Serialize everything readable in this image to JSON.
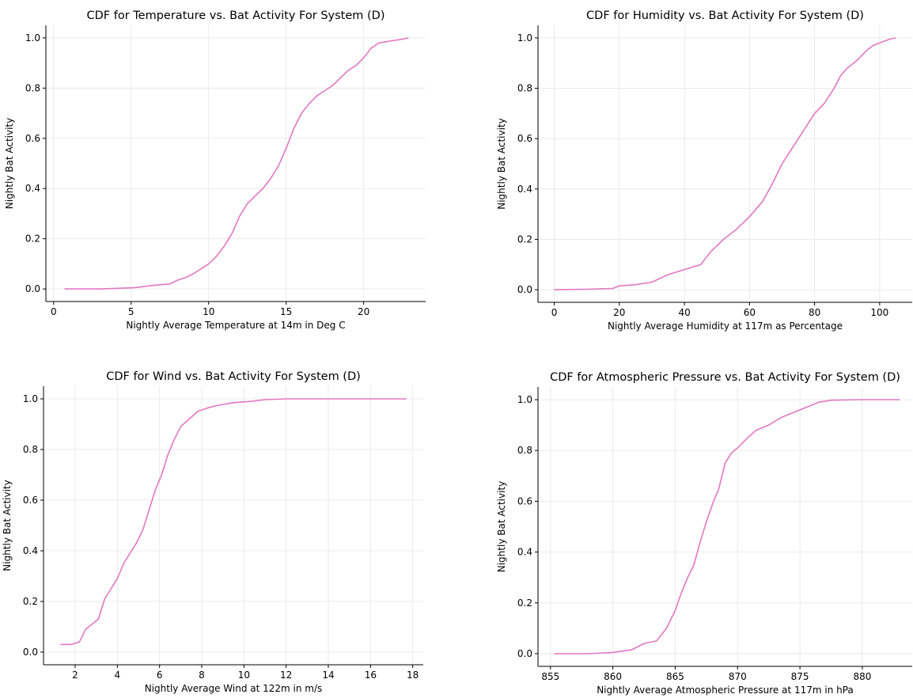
{
  "chart_data": [
    {
      "type": "line",
      "title": "CDF for Temperature vs. Bat Activity For System (D)",
      "xlabel": "Nightly Average Temperature at 14m in Deg C",
      "ylabel": "Nightly Bat Activity",
      "xlim": [
        -0.5,
        24.0
      ],
      "ylim": [
        -0.05,
        1.05
      ],
      "xticks": [
        0,
        5,
        10,
        15,
        20
      ],
      "yticks": [
        0.0,
        0.2,
        0.4,
        0.6,
        0.8,
        1.0
      ],
      "xticklabels": [
        "0",
        "5",
        "10",
        "15",
        "20"
      ],
      "yticklabels": [
        "0.0",
        "0.2",
        "0.4",
        "0.6",
        "0.8",
        "1.0"
      ],
      "grid": true,
      "color": "#e377c2",
      "x": [
        0.7,
        3.0,
        5.2,
        6.5,
        7.5,
        8.0,
        8.5,
        9.0,
        9.5,
        10.0,
        10.5,
        11.0,
        11.5,
        12.0,
        12.5,
        13.0,
        13.5,
        14.0,
        14.5,
        15.0,
        15.5,
        16.0,
        16.5,
        17.0,
        17.5,
        18.0,
        18.5,
        19.0,
        19.5,
        20.0,
        20.5,
        21.0,
        21.5,
        22.0,
        22.5,
        22.9
      ],
      "y": [
        0.0,
        0.0,
        0.005,
        0.015,
        0.02,
        0.035,
        0.045,
        0.06,
        0.08,
        0.1,
        0.13,
        0.17,
        0.22,
        0.29,
        0.34,
        0.37,
        0.4,
        0.44,
        0.49,
        0.56,
        0.64,
        0.7,
        0.74,
        0.77,
        0.79,
        0.81,
        0.84,
        0.87,
        0.89,
        0.92,
        0.96,
        0.98,
        0.985,
        0.99,
        0.995,
        1.0
      ]
    },
    {
      "type": "line",
      "title": "CDF for Humidity vs. Bat Activity For System (D)",
      "xlabel": "Nightly Average Humidity at 117m as Percentage",
      "ylabel": "Nightly Bat Activity",
      "xlim": [
        -5.0,
        110.0
      ],
      "ylim": [
        -0.05,
        1.05
      ],
      "xticks": [
        0,
        20,
        40,
        60,
        80,
        100
      ],
      "yticks": [
        0.0,
        0.2,
        0.4,
        0.6,
        0.8,
        1.0
      ],
      "xticklabels": [
        "0",
        "20",
        "40",
        "60",
        "80",
        "100"
      ],
      "yticklabels": [
        "0.0",
        "0.2",
        "0.4",
        "0.6",
        "0.8",
        "1.0"
      ],
      "grid": true,
      "color": "#e377c2",
      "x": [
        0,
        10,
        18,
        20,
        25,
        30,
        35,
        40,
        45,
        48,
        52,
        56,
        60,
        64,
        67,
        70,
        73,
        76,
        78,
        80,
        83,
        86,
        88,
        90,
        93,
        96,
        98,
        100,
        103,
        105
      ],
      "y": [
        0.0,
        0.002,
        0.005,
        0.015,
        0.02,
        0.03,
        0.06,
        0.08,
        0.1,
        0.15,
        0.2,
        0.24,
        0.29,
        0.35,
        0.42,
        0.5,
        0.56,
        0.62,
        0.66,
        0.7,
        0.74,
        0.8,
        0.85,
        0.88,
        0.91,
        0.95,
        0.97,
        0.98,
        0.995,
        1.0
      ]
    },
    {
      "type": "line",
      "title": "CDF for Wind vs. Bat Activity For System (D)",
      "xlabel": "Nightly Average Wind at 122m in m/s",
      "ylabel": "Nightly Bat Activity",
      "xlim": [
        0.5,
        18.5
      ],
      "ylim": [
        -0.05,
        1.05
      ],
      "xticks": [
        2,
        4,
        6,
        8,
        10,
        12,
        14,
        16,
        18
      ],
      "yticks": [
        0.0,
        0.2,
        0.4,
        0.6,
        0.8,
        1.0
      ],
      "xticklabels": [
        "2",
        "4",
        "6",
        "8",
        "10",
        "12",
        "14",
        "16",
        "18"
      ],
      "yticklabels": [
        "0.0",
        "0.2",
        "0.4",
        "0.6",
        "0.8",
        "1.0"
      ],
      "grid": true,
      "color": "#e377c2",
      "x": [
        1.3,
        1.8,
        2.2,
        2.5,
        2.8,
        3.1,
        3.4,
        3.7,
        4.0,
        4.3,
        4.6,
        4.9,
        5.2,
        5.5,
        5.8,
        6.1,
        6.4,
        6.7,
        7.0,
        7.4,
        7.8,
        8.3,
        8.8,
        9.5,
        10.3,
        11.0,
        12.0,
        14.0,
        17.7
      ],
      "y": [
        0.03,
        0.03,
        0.04,
        0.09,
        0.11,
        0.13,
        0.21,
        0.25,
        0.29,
        0.35,
        0.39,
        0.43,
        0.48,
        0.56,
        0.64,
        0.7,
        0.78,
        0.84,
        0.89,
        0.92,
        0.95,
        0.965,
        0.975,
        0.985,
        0.99,
        0.997,
        1.0,
        1.0,
        1.0
      ]
    },
    {
      "type": "line",
      "title": "CDF for Atmospheric Pressure vs. Bat Activity For System (D)",
      "xlabel": "Nightly Average Atmospheric Pressure at 117m in hPa",
      "ylabel": "Nightly Bat Activity",
      "xlim": [
        854.0,
        884.0
      ],
      "ylim": [
        -0.05,
        1.05
      ],
      "xticks": [
        855,
        860,
        865,
        870,
        875,
        880
      ],
      "yticks": [
        0.0,
        0.2,
        0.4,
        0.6,
        0.8,
        1.0
      ],
      "xticklabels": [
        "855",
        "860",
        "865",
        "870",
        "875",
        "880"
      ],
      "yticklabels": [
        "0.0",
        "0.2",
        "0.4",
        "0.6",
        "0.8",
        "1.0"
      ],
      "grid": true,
      "color": "#e377c2",
      "x": [
        855.3,
        858.0,
        860.0,
        861.5,
        862.5,
        863.5,
        864.3,
        865.0,
        865.5,
        866.0,
        866.5,
        867.0,
        867.5,
        868.0,
        868.5,
        869.0,
        869.5,
        870.0,
        870.8,
        871.5,
        872.5,
        873.5,
        874.5,
        875.5,
        876.5,
        877.5,
        880.0,
        883.0
      ],
      "y": [
        0.0,
        0.0,
        0.005,
        0.015,
        0.04,
        0.05,
        0.1,
        0.17,
        0.24,
        0.3,
        0.35,
        0.44,
        0.52,
        0.59,
        0.65,
        0.75,
        0.79,
        0.81,
        0.85,
        0.88,
        0.9,
        0.93,
        0.95,
        0.97,
        0.99,
        0.998,
        1.0,
        1.0
      ]
    }
  ]
}
